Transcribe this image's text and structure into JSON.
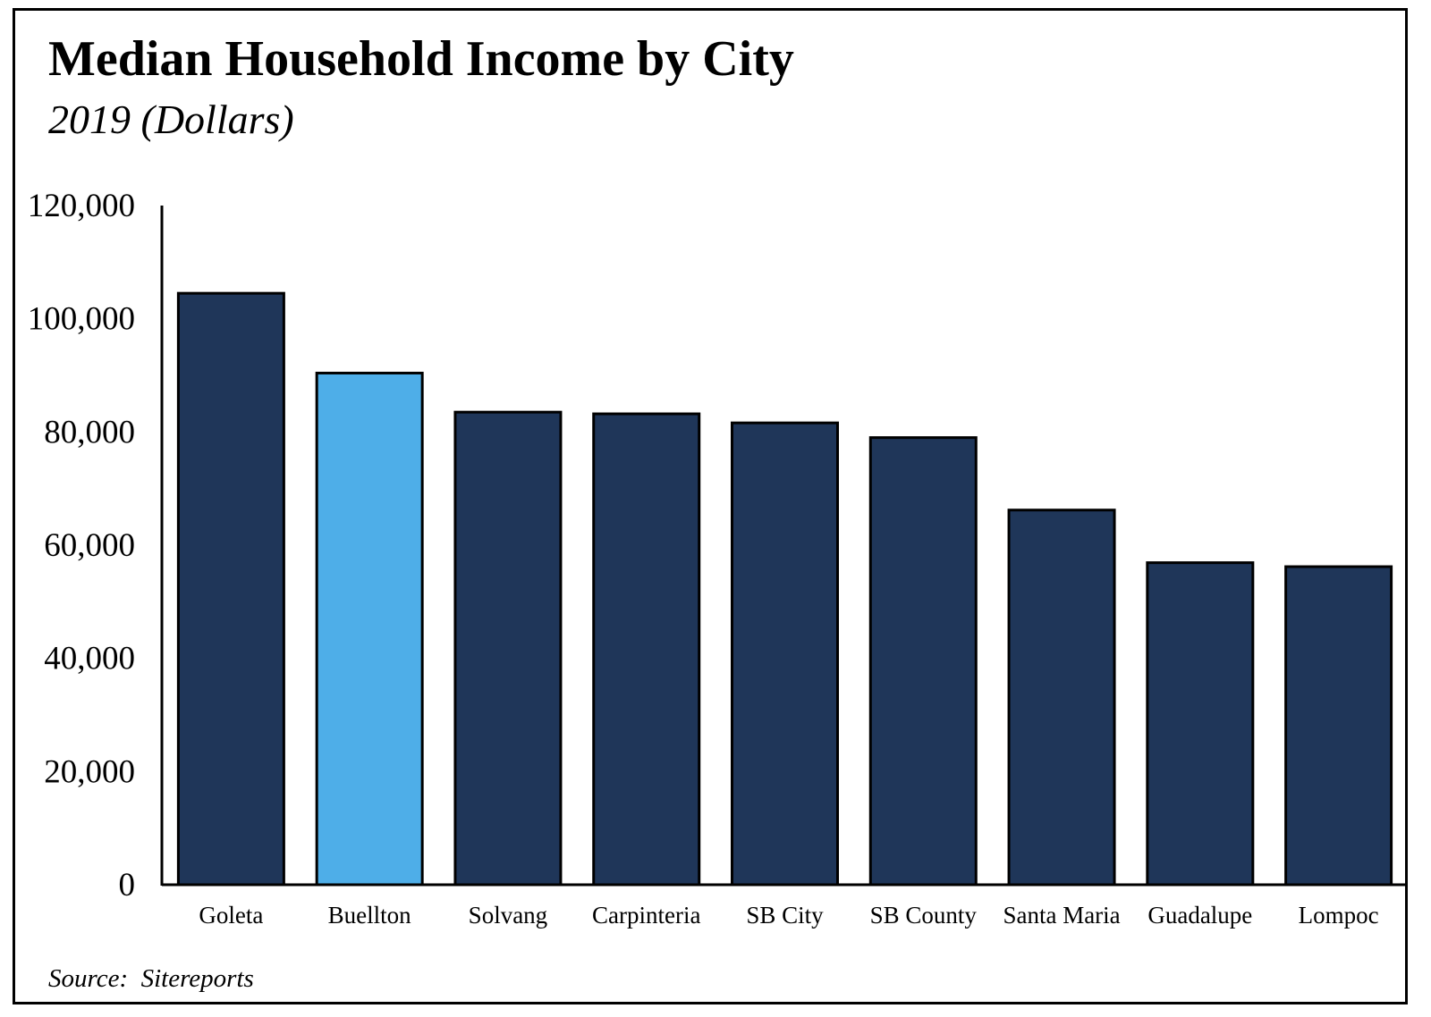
{
  "chart_data": {
    "type": "bar",
    "title": "Median Household Income by City",
    "subtitle": "2019 (Dollars)",
    "source": "Source:  Sitereports",
    "categories": [
      "Goleta",
      "Buellton",
      "Solvang",
      "Carpinteria",
      "SB City",
      "SB County",
      "Santa Maria",
      "Guadalupe",
      "Lompoc"
    ],
    "values": [
      104500,
      90400,
      83500,
      83200,
      81600,
      79000,
      66200,
      56900,
      56200
    ],
    "colors": [
      "#1f3659",
      "#4eaee8",
      "#1f3659",
      "#1f3659",
      "#1f3659",
      "#1f3659",
      "#1f3659",
      "#1f3659",
      "#1f3659"
    ],
    "ylim": [
      0,
      120000
    ],
    "yticks": [
      0,
      20000,
      40000,
      60000,
      80000,
      100000,
      120000
    ],
    "ytick_labels": [
      "0",
      "20,000",
      "40,000",
      "60,000",
      "80,000",
      "100,000",
      "120,000"
    ],
    "grid": false,
    "legend": "none",
    "bar_edge_color": "#000000"
  }
}
